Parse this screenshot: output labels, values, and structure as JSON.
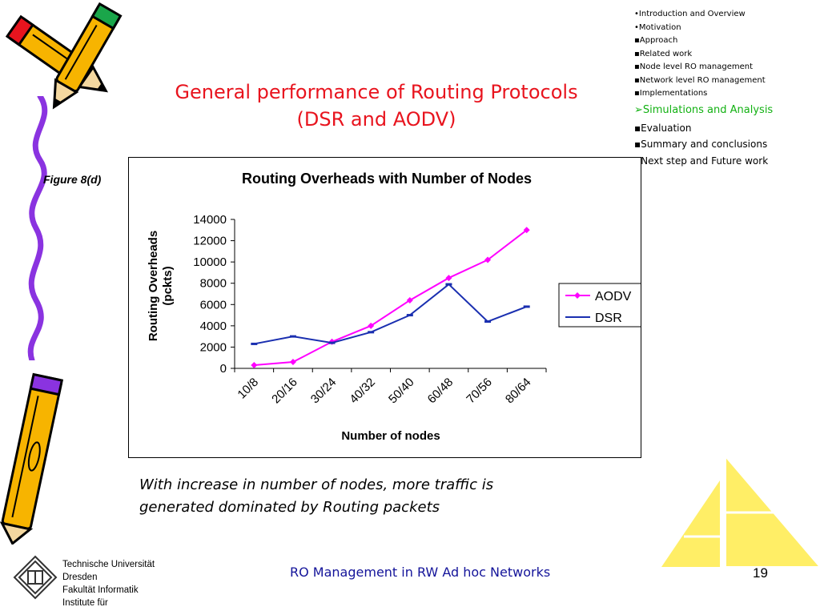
{
  "slide": {
    "title_line1": "General performance of Routing Protocols",
    "title_line2": "(DSR and  AODV)",
    "figure_label": "Figure 8(d)",
    "caption_line1": "With increase in number of nodes, more traffic is",
    "caption_line2": "generated dominated by Routing packets",
    "footer_text": "RO Management in RW Ad hoc Networks",
    "page_number": "19"
  },
  "outline": [
    {
      "bullet": "•",
      "label": "Introduction and Overview",
      "style": "small"
    },
    {
      "bullet": "•",
      "label": "Motivation",
      "style": "small"
    },
    {
      "bullet": "▪",
      "label": "Approach",
      "style": "small"
    },
    {
      "bullet": "▪",
      "label": "Related work",
      "style": "small"
    },
    {
      "bullet": "▪",
      "label": "Node level RO management",
      "style": "small"
    },
    {
      "bullet": "▪",
      "label": "Network level RO management",
      "style": "small"
    },
    {
      "bullet": "▪",
      "label": "Implementations",
      "style": "small"
    },
    {
      "bullet": "➢",
      "label": "Simulations and Analysis",
      "style": "current"
    },
    {
      "bullet": "▪",
      "label": "Evaluation",
      "style": "large"
    },
    {
      "bullet": "▪",
      "label": "Summary and conclusions",
      "style": "large"
    },
    {
      "bullet": "▪",
      "label": "Next step and Future work",
      "style": "large"
    }
  ],
  "institution": {
    "line1": "Technische Universität",
    "line2": "Dresden",
    "line3": "Fakultät Informatik",
    "line4": "Institute für"
  },
  "colors": {
    "title": "#e8141e",
    "current_section": "#12b112",
    "footer": "#14149a",
    "aodv": "#ff00ff",
    "dsr": "#1a2fb0",
    "sail": "#ffee66",
    "pencil_body": "#f7b400"
  },
  "chart_data": {
    "type": "line",
    "title": "Routing Overheads with Number of Nodes",
    "xlabel": "Number of nodes",
    "ylabel_line1": "Routing Overheads",
    "ylabel_line2": "(pckts)",
    "categories": [
      "10/8",
      "20/16",
      "30/24",
      "40/32",
      "50/40",
      "60/48",
      "70/56",
      "80/64"
    ],
    "ylim": [
      0,
      14000
    ],
    "yticks": [
      "0",
      "2000",
      "4000",
      "6000",
      "8000",
      "10000",
      "12000",
      "14000"
    ],
    "grid": false,
    "legend_position": "right",
    "series": [
      {
        "name": "AODV",
        "values": [
          300,
          600,
          2500,
          4000,
          6400,
          8500,
          10200,
          13000
        ]
      },
      {
        "name": "DSR",
        "values": [
          2300,
          3000,
          2400,
          3400,
          5000,
          7900,
          4400,
          5800
        ]
      }
    ]
  }
}
